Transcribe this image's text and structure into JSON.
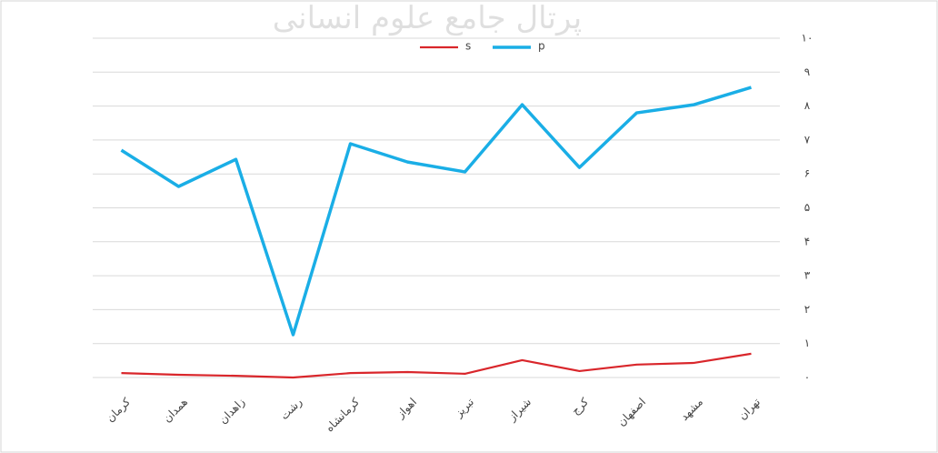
{
  "chart_data": {
    "type": "line",
    "watermark": "پرتال جامع علوم انسانی",
    "categories": [
      "کرمان",
      "همدان",
      "زاهدان",
      "رشت",
      "کرمانشاه",
      "اهواز",
      "تبریز",
      "شیراز",
      "کرج",
      "اصفهان",
      "مشهد",
      "تهران"
    ],
    "series": [
      {
        "name": "s",
        "color": "#d9262b",
        "values": [
          0.13,
          0.08,
          0.05,
          0,
          0.13,
          0.16,
          0.11,
          0.51,
          0.19,
          0.38,
          0.43,
          0.7
        ]
      },
      {
        "name": "p",
        "color": "#1aaee6",
        "values": [
          6.7,
          5.63,
          6.43,
          1.26,
          6.89,
          6.35,
          6.06,
          8.04,
          6.19,
          7.8,
          8.04,
          8.55
        ]
      }
    ],
    "ylim": [
      0,
      10
    ],
    "yticks": [
      {
        "value": 0,
        "label": "۰"
      },
      {
        "value": 1,
        "label": "۱"
      },
      {
        "value": 2,
        "label": "۲"
      },
      {
        "value": 3,
        "label": "۳"
      },
      {
        "value": 4,
        "label": "۴"
      },
      {
        "value": 5,
        "label": "۵"
      },
      {
        "value": 6,
        "label": "۶"
      },
      {
        "value": 7,
        "label": "۷"
      },
      {
        "value": 8,
        "label": "۸"
      },
      {
        "value": 9,
        "label": "۹"
      },
      {
        "value": 10,
        "label": "۱۰"
      }
    ],
    "grid": true,
    "legend": "top"
  }
}
